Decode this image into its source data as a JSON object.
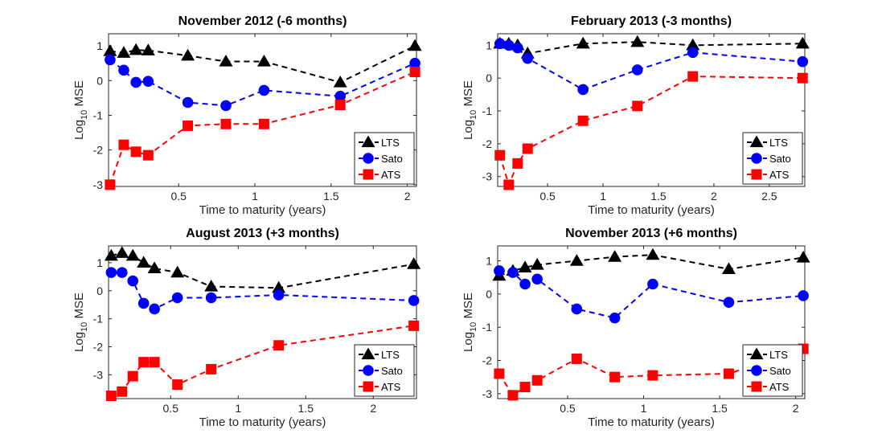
{
  "chart_data": [
    {
      "type": "line",
      "title": "November 2012  (-6 months)",
      "xlabel": "Time to maturity (years)",
      "ylabel": "Log",
      "ylabel_sub": "10",
      "ylabel_suffix": " MSE",
      "xlim": [
        0.04,
        2.06
      ],
      "ylim": [
        -3.05,
        1.35
      ],
      "xticks": [
        0.5,
        1,
        1.5,
        2
      ],
      "xtick_labels": [
        "0.5",
        "1",
        "1.5",
        "2"
      ],
      "yticks": [
        -3,
        -2,
        -1,
        0,
        1
      ],
      "ytick_labels": [
        "-3",
        "-2",
        "-1",
        "0",
        "1"
      ],
      "legend_position": "bottom-right",
      "series": [
        {
          "name": "LTS",
          "color": "#000000",
          "marker": "triangle",
          "x": [
            0.05,
            0.14,
            0.22,
            0.3,
            0.56,
            0.81,
            1.06,
            1.56,
            2.05
          ],
          "y": [
            0.85,
            0.8,
            0.88,
            0.87,
            0.72,
            0.55,
            0.55,
            -0.05,
            1.0
          ]
        },
        {
          "name": "Sato",
          "color": "#0000ff",
          "marker": "circle",
          "x": [
            0.05,
            0.14,
            0.22,
            0.3,
            0.56,
            0.81,
            1.06,
            1.56,
            2.05
          ],
          "y": [
            0.6,
            0.3,
            -0.05,
            -0.02,
            -0.63,
            -0.72,
            -0.28,
            -0.45,
            0.5
          ]
        },
        {
          "name": "ATS",
          "color": "#ff0000",
          "marker": "square",
          "x": [
            0.05,
            0.14,
            0.22,
            0.3,
            0.56,
            0.81,
            1.06,
            1.56,
            2.05
          ],
          "y": [
            -3.0,
            -1.85,
            -2.05,
            -2.15,
            -1.3,
            -1.25,
            -1.25,
            -0.7,
            0.25
          ]
        }
      ]
    },
    {
      "type": "line",
      "title": "February 2013 (-3 months)",
      "xlabel": "Time to maturity (years)",
      "ylabel": "Log",
      "ylabel_sub": "10",
      "ylabel_suffix": " MSE",
      "xlim": [
        0.05,
        2.82
      ],
      "ylim": [
        -3.3,
        1.35
      ],
      "xticks": [
        0.5,
        1,
        1.5,
        2,
        2.5
      ],
      "xtick_labels": [
        "0.5",
        "1",
        "1.5",
        "2",
        "2.5"
      ],
      "yticks": [
        -3,
        -2,
        -1,
        0,
        1
      ],
      "ytick_labels": [
        "-3",
        "-2",
        "-1",
        "0",
        "1"
      ],
      "legend_position": "bottom-right",
      "series": [
        {
          "name": "LTS",
          "color": "#000000",
          "marker": "triangle",
          "x": [
            0.07,
            0.15,
            0.23,
            0.32,
            0.82,
            1.31,
            1.81,
            2.8
          ],
          "y": [
            1.05,
            1.05,
            1.0,
            0.75,
            1.05,
            1.1,
            1.0,
            1.05
          ]
        },
        {
          "name": "Sato",
          "color": "#0000ff",
          "marker": "circle",
          "x": [
            0.07,
            0.15,
            0.23,
            0.32,
            0.82,
            1.31,
            1.81,
            2.8
          ],
          "y": [
            1.05,
            1.0,
            0.92,
            0.6,
            -0.35,
            0.25,
            0.78,
            0.5
          ]
        },
        {
          "name": "ATS",
          "color": "#ff0000",
          "marker": "square",
          "x": [
            0.07,
            0.15,
            0.23,
            0.32,
            0.82,
            1.31,
            1.81,
            2.8
          ],
          "y": [
            -2.35,
            -3.25,
            -2.6,
            -2.15,
            -1.3,
            -0.85,
            0.05,
            0.0
          ]
        }
      ]
    },
    {
      "type": "line",
      "title": "August 2013 (+3 months)",
      "xlabel": "Time to maturity (years)",
      "ylabel": "Log",
      "ylabel_sub": "10",
      "ylabel_suffix": " MSE",
      "xlim": [
        0.04,
        2.32
      ],
      "ylim": [
        -3.85,
        1.6
      ],
      "xticks": [
        0.5,
        1,
        1.5,
        2
      ],
      "xtick_labels": [
        "0.5",
        "1",
        "1.5",
        "2"
      ],
      "yticks": [
        -3,
        -2,
        -1,
        0,
        1
      ],
      "ytick_labels": [
        "-3",
        "-2",
        "-1",
        "0",
        "1"
      ],
      "legend_position": "bottom-right",
      "series": [
        {
          "name": "LTS",
          "color": "#000000",
          "marker": "triangle",
          "x": [
            0.06,
            0.14,
            0.22,
            0.3,
            0.38,
            0.55,
            0.8,
            1.3,
            2.3
          ],
          "y": [
            1.25,
            1.35,
            1.25,
            1.0,
            0.8,
            0.65,
            0.15,
            0.1,
            0.95
          ]
        },
        {
          "name": "Sato",
          "color": "#0000ff",
          "marker": "circle",
          "x": [
            0.06,
            0.14,
            0.22,
            0.3,
            0.38,
            0.55,
            0.8,
            1.3,
            2.3
          ],
          "y": [
            0.65,
            0.65,
            0.35,
            -0.45,
            -0.65,
            -0.25,
            -0.25,
            -0.15,
            -0.35
          ]
        },
        {
          "name": "ATS",
          "color": "#ff0000",
          "marker": "square",
          "x": [
            0.06,
            0.14,
            0.22,
            0.3,
            0.38,
            0.55,
            0.8,
            1.3,
            2.3
          ],
          "y": [
            -3.75,
            -3.6,
            -3.05,
            -2.55,
            -2.55,
            -3.35,
            -2.8,
            -1.95,
            -1.25
          ]
        }
      ]
    },
    {
      "type": "line",
      "title": "November 2013 (+6 months)",
      "xlabel": "Time to maturity (years)",
      "ylabel": "Log",
      "ylabel_sub": "10",
      "ylabel_suffix": " MSE",
      "xlim": [
        0.04,
        2.06
      ],
      "ylim": [
        -3.15,
        1.45
      ],
      "xticks": [
        0.5,
        1,
        1.5,
        2
      ],
      "xtick_labels": [
        "0.5",
        "1",
        "1.5",
        "2"
      ],
      "yticks": [
        -3,
        -2,
        -1,
        0,
        1
      ],
      "ytick_labels": [
        "-3",
        "-2",
        "-1",
        "0",
        "1"
      ],
      "legend_position": "bottom-right",
      "series": [
        {
          "name": "LTS",
          "color": "#000000",
          "marker": "triangle",
          "x": [
            0.05,
            0.14,
            0.22,
            0.3,
            0.56,
            0.81,
            1.06,
            1.56,
            2.05
          ],
          "y": [
            0.55,
            0.7,
            0.8,
            0.88,
            1.0,
            1.12,
            1.18,
            0.75,
            1.1
          ]
        },
        {
          "name": "Sato",
          "color": "#0000ff",
          "marker": "circle",
          "x": [
            0.05,
            0.14,
            0.22,
            0.3,
            0.56,
            0.81,
            1.06,
            1.56,
            2.05
          ],
          "y": [
            0.7,
            0.65,
            0.3,
            0.45,
            -0.45,
            -0.72,
            0.3,
            -0.25,
            -0.05
          ]
        },
        {
          "name": "ATS",
          "color": "#ff0000",
          "marker": "square",
          "x": [
            0.05,
            0.14,
            0.22,
            0.3,
            0.56,
            0.81,
            1.06,
            1.56,
            2.05
          ],
          "y": [
            -2.4,
            -3.05,
            -2.8,
            -2.6,
            -1.95,
            -2.5,
            -2.45,
            -2.4,
            -1.65
          ]
        }
      ]
    }
  ]
}
